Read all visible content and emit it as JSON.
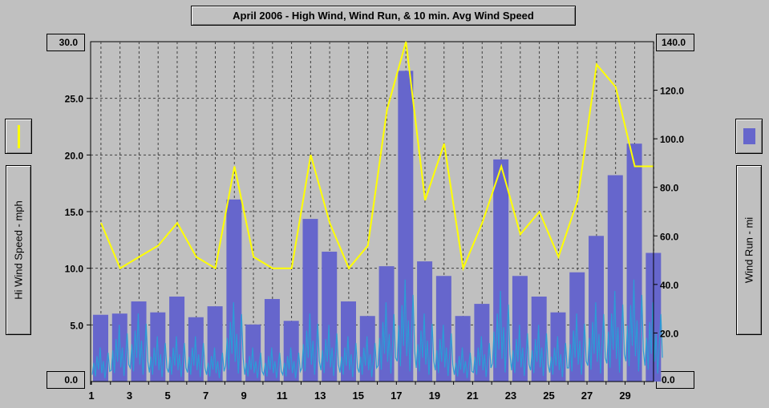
{
  "chart_data": {
    "type": "bar+line",
    "title": "April 2006 - High Wind, Wind Run, & 10 min. Avg Wind Speed",
    "left_axis": {
      "label": "Hi Wind Speed - mph",
      "ylim": [
        0,
        30
      ],
      "ticks": [
        "0.0",
        "5.0",
        "10.0",
        "15.0",
        "20.0",
        "25.0",
        "30.0"
      ]
    },
    "right_axis": {
      "label": "Wind Run - mi",
      "ylim": [
        0,
        140
      ],
      "ticks": [
        "0.0",
        "20.0",
        "40.0",
        "60.0",
        "80.0",
        "100.0",
        "120.0",
        "140.0"
      ]
    },
    "x_ticks": [
      "1",
      "3",
      "5",
      "7",
      "9",
      "11",
      "13",
      "15",
      "17",
      "19",
      "21",
      "23",
      "25",
      "27",
      "29"
    ],
    "days": [
      1,
      2,
      3,
      4,
      5,
      6,
      7,
      8,
      9,
      10,
      11,
      12,
      13,
      14,
      15,
      16,
      17,
      18,
      19,
      20,
      21,
      22,
      23,
      24,
      25,
      26,
      27,
      28,
      29,
      30
    ],
    "series": [
      {
        "name": "Wind Run",
        "type": "bar",
        "axis": "right",
        "color": "#6666cc",
        "values": [
          27.5,
          28,
          33,
          28.5,
          35,
          26.5,
          31,
          75,
          23.5,
          34,
          25,
          67,
          53.5,
          33,
          27,
          47.5,
          128,
          49.5,
          43.5,
          27,
          32,
          91.5,
          43.5,
          35,
          28.5,
          45,
          60,
          85,
          98,
          53
        ]
      },
      {
        "name": "High Wind",
        "type": "line",
        "axis": "left",
        "color": "#ffff00",
        "values": [
          14,
          10,
          11,
          12,
          14,
          11,
          10,
          19,
          11,
          10,
          10,
          20,
          14,
          10,
          12,
          24,
          30,
          16,
          21,
          10,
          14,
          19,
          13,
          15,
          11,
          16,
          28,
          26,
          19,
          19
        ]
      },
      {
        "name": "10 min. Avg Wind Speed",
        "type": "line",
        "axis": "left",
        "color": "#2c9bd6",
        "daily_peaks": [
          3,
          5,
          6,
          4,
          4,
          4,
          3,
          7,
          3,
          3,
          3,
          6,
          5,
          4,
          4,
          7,
          9,
          6,
          5,
          3,
          4,
          8,
          5,
          5,
          4,
          6,
          7,
          8,
          9,
          7
        ]
      }
    ],
    "grid": true,
    "legend": "left and right side panels"
  }
}
